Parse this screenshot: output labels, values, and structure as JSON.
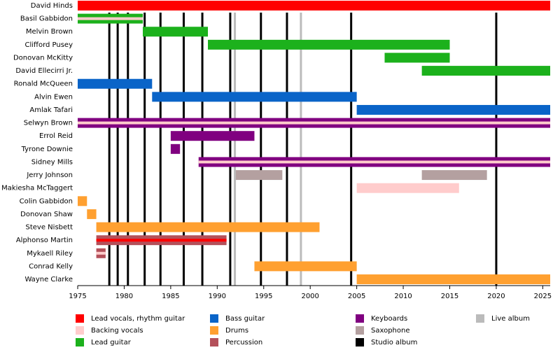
{
  "chart_data": {
    "type": "timeline",
    "xlim": [
      1975,
      2025.8
    ],
    "xticks": [
      1975,
      1980,
      1985,
      1990,
      1995,
      2000,
      2005,
      2010,
      2015,
      2020,
      2025
    ],
    "roles": [
      {
        "name": "Lead vocals, rhythm guitar",
        "color": "#ff0000"
      },
      {
        "name": "Backing vocals",
        "color": "#ffcccc"
      },
      {
        "name": "Lead guitar",
        "color": "#1cb11c"
      },
      {
        "name": "Bass guitar",
        "color": "#0a64c8"
      },
      {
        "name": "Drums",
        "color": "#ffa030"
      },
      {
        "name": "Percussion",
        "color": "#b4505a"
      },
      {
        "name": "Keyboards",
        "color": "#800080"
      },
      {
        "name": "Saxophone",
        "color": "#b4a0a0"
      },
      {
        "name": "Studio album",
        "color": "#000000"
      },
      {
        "name": "Live album",
        "color": "#bbbbbb"
      }
    ],
    "studio_albums": [
      1978.4,
      1979.3,
      1980.4,
      1982.2,
      1983.9,
      1986.4,
      1988.4,
      1991.4,
      1994.7,
      1997.5,
      2004.4,
      2020
    ],
    "live_albums": [
      1991.9,
      1999
    ],
    "categories": [
      "David Hinds",
      "Basil Gabbidon",
      "Melvin Brown",
      "Clifford Pusey",
      "Donovan McKitty",
      "David Ellecirri Jr.",
      "Ronald McQueen",
      "Alvin Ewen",
      "Amlak Tafari",
      "Selwyn Brown",
      "Errol Reid",
      "Tyrone Downie",
      "Sidney Mills",
      "Jerry Johnson",
      "Makiesha McTaggert",
      "Colin Gabbidon",
      "Donovan Shaw",
      "Steve Nisbett",
      "Alphonso Martin",
      "Mykaell Riley",
      "Conrad Kelly",
      "Wayne Clarke"
    ],
    "bars": [
      [
        {
          "start": 1975,
          "end": 2025.8,
          "role": "Lead vocals, rhythm guitar"
        }
      ],
      [
        {
          "start": 1975,
          "end": 1982,
          "role": "Lead guitar",
          "stripe": "Backing vocals"
        }
      ],
      [
        {
          "start": 1982,
          "end": 1989,
          "role": "Lead guitar"
        }
      ],
      [
        {
          "start": 1989,
          "end": 2015,
          "role": "Lead guitar"
        }
      ],
      [
        {
          "start": 2008,
          "end": 2015,
          "role": "Lead guitar"
        }
      ],
      [
        {
          "start": 2012,
          "end": 2025.8,
          "role": "Lead guitar"
        }
      ],
      [
        {
          "start": 1975,
          "end": 1983,
          "role": "Bass guitar"
        }
      ],
      [
        {
          "start": 1983,
          "end": 2005,
          "role": "Bass guitar"
        }
      ],
      [
        {
          "start": 2005,
          "end": 2025.8,
          "role": "Bass guitar"
        }
      ],
      [
        {
          "start": 1975,
          "end": 2025.8,
          "role": "Keyboards",
          "stripe": "Backing vocals"
        }
      ],
      [
        {
          "start": 1985,
          "end": 1994,
          "role": "Keyboards"
        }
      ],
      [
        {
          "start": 1985,
          "end": 1986,
          "role": "Keyboards"
        }
      ],
      [
        {
          "start": 1988,
          "end": 2025.8,
          "role": "Keyboards",
          "stripe": "Backing vocals"
        }
      ],
      [
        {
          "start": 1992,
          "end": 1997,
          "role": "Saxophone"
        },
        {
          "start": 2012,
          "end": 2019,
          "role": "Saxophone"
        }
      ],
      [
        {
          "start": 2005,
          "end": 2016,
          "role": "Backing vocals"
        }
      ],
      [
        {
          "start": 1975,
          "end": 1976,
          "role": "Drums"
        }
      ],
      [
        {
          "start": 1976,
          "end": 1977,
          "role": "Drums"
        }
      ],
      [
        {
          "start": 1977,
          "end": 2001,
          "role": "Drums"
        }
      ],
      [
        {
          "start": 1977,
          "end": 1991,
          "role": "Percussion",
          "stripe": "Lead vocals, rhythm guitar"
        }
      ],
      [
        {
          "start": 1977,
          "end": 1978,
          "role": "Percussion",
          "stripe": "Backing vocals"
        }
      ],
      [
        {
          "start": 1994,
          "end": 2005,
          "role": "Drums"
        }
      ],
      [
        {
          "start": 2005,
          "end": 2025.8,
          "role": "Drums"
        }
      ]
    ]
  }
}
